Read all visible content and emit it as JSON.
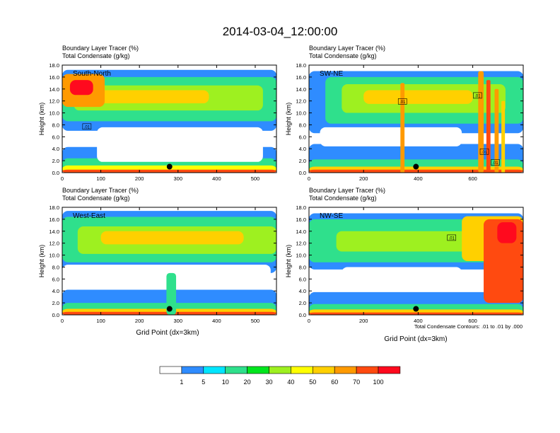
{
  "figure": {
    "title": "2014-03-04_12:00:00",
    "footnote": "Total Condensate Contours: .01 to .01 by .000"
  },
  "colors": {
    "levels": [
      "#ffffff",
      "#2f8cff",
      "#00e6ff",
      "#2fe08c",
      "#00e61e",
      "#9ef020",
      "#ffff00",
      "#ffd000",
      "#ff9a00",
      "#ff4a10",
      "#ff0a1e"
    ],
    "contour": "#000000"
  },
  "colorbar": {
    "labels": [
      "1",
      "5",
      "10",
      "20",
      "30",
      "40",
      "50",
      "60",
      "70",
      "100"
    ]
  },
  "chart_data": [
    {
      "type": "heatmap",
      "title": "Boundary Layer Tracer   (%)",
      "subtitle": "Total Condensate   (g/kg)",
      "panel_label": "South-North",
      "xlabel": "",
      "ylabel": "Height (km)",
      "xlim": [
        0,
        555
      ],
      "ylim": [
        0,
        18
      ],
      "xticks": [
        "0",
        "100",
        "200",
        "300",
        "400",
        "500"
      ],
      "yticks": [
        "0.0",
        "2.0",
        "4.0",
        "6.0",
        "8.0",
        "10.0",
        "12.0",
        "14.0",
        "16.0",
        "18.0"
      ],
      "contour_labels": [
        {
          "x": 62,
          "y": 7.6,
          "text": ".01"
        }
      ],
      "marker": {
        "x": 278,
        "y": 1.0
      },
      "layers": [
        {
          "level": 1,
          "x": [
            0,
            555
          ],
          "y": [
            0,
            4.3
          ]
        },
        {
          "level": 3,
          "x": [
            0,
            555
          ],
          "y": [
            0,
            2.4
          ]
        },
        {
          "level": 6,
          "x": [
            0,
            555
          ],
          "y": [
            0,
            1.2
          ]
        },
        {
          "level": 9,
          "x": [
            0,
            555
          ],
          "y": [
            0,
            0.5
          ]
        },
        {
          "level": 1,
          "x": [
            0,
            555
          ],
          "y": [
            7.0,
            17.2
          ]
        },
        {
          "level": 3,
          "x": [
            0,
            555
          ],
          "y": [
            8.6,
            16.0
          ]
        },
        {
          "level": 5,
          "x": [
            30,
            520
          ],
          "y": [
            10.4,
            14.6
          ]
        },
        {
          "level": 7,
          "x": [
            60,
            380
          ],
          "y": [
            11.6,
            13.8
          ]
        },
        {
          "level": 8,
          "x": [
            0,
            110
          ],
          "y": [
            11.0,
            16.5
          ]
        },
        {
          "level": 10,
          "x": [
            20,
            80
          ],
          "y": [
            13.0,
            15.5
          ]
        },
        {
          "level": 0,
          "x": [
            90,
            520
          ],
          "y": [
            1.8,
            7.6
          ]
        }
      ]
    },
    {
      "type": "heatmap",
      "title": "Boundary Layer Tracer   (%)",
      "subtitle": "Total Condensate   (g/kg)",
      "panel_label": "SW-NE",
      "xlabel": "",
      "ylabel": "Height (km)",
      "xlim": [
        0,
        785
      ],
      "ylim": [
        0,
        18
      ],
      "xticks": [
        "0",
        "200",
        "400",
        "600"
      ],
      "yticks": [
        "0.0",
        "2.0",
        "4.0",
        "6.0",
        "8.0",
        "10.0",
        "12.0",
        "14.0",
        "16.0",
        "18.0"
      ],
      "contour_labels": [
        {
          "x": 340,
          "y": 11.8,
          "text": ".01"
        },
        {
          "x": 615,
          "y": 12.8,
          "text": ".01"
        },
        {
          "x": 640,
          "y": 3.4,
          "text": ".01"
        },
        {
          "x": 680,
          "y": 1.6,
          "text": ".01"
        }
      ],
      "marker": {
        "x": 392,
        "y": 1.0
      },
      "layers": [
        {
          "level": 1,
          "x": [
            0,
            785
          ],
          "y": [
            0,
            4.8
          ]
        },
        {
          "level": 3,
          "x": [
            0,
            785
          ],
          "y": [
            0,
            2.2
          ]
        },
        {
          "level": 7,
          "x": [
            0,
            785
          ],
          "y": [
            0,
            1.0
          ]
        },
        {
          "level": 9,
          "x": [
            0,
            785
          ],
          "y": [
            0,
            0.5
          ]
        },
        {
          "level": 1,
          "x": [
            0,
            785
          ],
          "y": [
            6.6,
            17.0
          ]
        },
        {
          "level": 3,
          "x": [
            60,
            785
          ],
          "y": [
            8.2,
            16.0
          ]
        },
        {
          "level": 5,
          "x": [
            120,
            720
          ],
          "y": [
            10.0,
            14.8
          ]
        },
        {
          "level": 7,
          "x": [
            200,
            600
          ],
          "y": [
            11.5,
            13.8
          ]
        },
        {
          "level": 0,
          "x": [
            40,
            560
          ],
          "y": [
            4.4,
            7.6
          ]
        },
        {
          "level": 8,
          "x": [
            335,
            350
          ],
          "y": [
            0,
            15.0
          ]
        },
        {
          "level": 8,
          "x": [
            620,
            640
          ],
          "y": [
            0,
            17.0
          ]
        },
        {
          "level": 9,
          "x": [
            650,
            665
          ],
          "y": [
            0,
            15.5
          ]
        },
        {
          "level": 8,
          "x": [
            680,
            695
          ],
          "y": [
            0,
            14.0
          ]
        },
        {
          "level": 7,
          "x": [
            705,
            718
          ],
          "y": [
            0,
            12.0
          ]
        }
      ]
    },
    {
      "type": "heatmap",
      "title": "Boundary Layer Tracer   (%)",
      "subtitle": "Total Condensate   (g/kg)",
      "panel_label": "West-East",
      "xlabel": "Grid Point (dx=3km)",
      "ylabel": "Height (km)",
      "xlim": [
        0,
        555
      ],
      "ylim": [
        0,
        18
      ],
      "xticks": [
        "0",
        "100",
        "200",
        "300",
        "400",
        "500"
      ],
      "yticks": [
        "0.0",
        "2.0",
        "4.0",
        "6.0",
        "8.0",
        "10.0",
        "12.0",
        "14.0",
        "16.0",
        "18.0"
      ],
      "contour_labels": [],
      "marker": {
        "x": 278,
        "y": 1.0
      },
      "layers": [
        {
          "level": 1,
          "x": [
            0,
            555
          ],
          "y": [
            0,
            4.2
          ]
        },
        {
          "level": 3,
          "x": [
            0,
            555
          ],
          "y": [
            0,
            2.0
          ]
        },
        {
          "level": 7,
          "x": [
            0,
            555
          ],
          "y": [
            0,
            1.0
          ]
        },
        {
          "level": 9,
          "x": [
            0,
            555
          ],
          "y": [
            0,
            0.5
          ]
        },
        {
          "level": 1,
          "x": [
            0,
            555
          ],
          "y": [
            7.0,
            17.4
          ]
        },
        {
          "level": 3,
          "x": [
            0,
            555
          ],
          "y": [
            8.8,
            16.4
          ]
        },
        {
          "level": 5,
          "x": [
            40,
            555
          ],
          "y": [
            10.2,
            14.8
          ]
        },
        {
          "level": 7,
          "x": [
            100,
            470
          ],
          "y": [
            11.8,
            14.0
          ]
        },
        {
          "level": 0,
          "x": [
            0,
            540
          ],
          "y": [
            4.4,
            8.4
          ]
        },
        {
          "level": 3,
          "x": [
            270,
            295
          ],
          "y": [
            0,
            7.0
          ]
        }
      ]
    },
    {
      "type": "heatmap",
      "title": "Boundary Layer Tracer   (%)",
      "subtitle": "Total Condensate   (g/kg)",
      "panel_label": "NW-SE",
      "xlabel": "Grid Point (dx=3km)",
      "ylabel": "Height (km)",
      "xlim": [
        0,
        785
      ],
      "ylim": [
        0,
        18
      ],
      "xticks": [
        "0",
        "200",
        "400",
        "600"
      ],
      "yticks": [
        "0.0",
        "2.0",
        "4.0",
        "6.0",
        "8.0",
        "10.0",
        "12.0",
        "14.0",
        "16.0",
        "18.0"
      ],
      "contour_labels": [
        {
          "x": 520,
          "y": 12.8,
          "text": ".01"
        }
      ],
      "marker": {
        "x": 392,
        "y": 1.0
      },
      "layers": [
        {
          "level": 1,
          "x": [
            0,
            785
          ],
          "y": [
            0,
            3.8
          ]
        },
        {
          "level": 3,
          "x": [
            0,
            785
          ],
          "y": [
            0,
            1.8
          ]
        },
        {
          "level": 7,
          "x": [
            0,
            785
          ],
          "y": [
            0,
            0.9
          ]
        },
        {
          "level": 9,
          "x": [
            0,
            785
          ],
          "y": [
            0,
            0.4
          ]
        },
        {
          "level": 1,
          "x": [
            0,
            785
          ],
          "y": [
            7.6,
            17.0
          ]
        },
        {
          "level": 3,
          "x": [
            0,
            785
          ],
          "y": [
            8.8,
            16.0
          ]
        },
        {
          "level": 5,
          "x": [
            100,
            700
          ],
          "y": [
            10.6,
            14.0
          ]
        },
        {
          "level": 7,
          "x": [
            560,
            785
          ],
          "y": [
            9.0,
            16.5
          ]
        },
        {
          "level": 9,
          "x": [
            640,
            785
          ],
          "y": [
            2.0,
            16.0
          ]
        },
        {
          "level": 10,
          "x": [
            690,
            760
          ],
          "y": [
            12.0,
            15.5
          ]
        },
        {
          "level": 0,
          "x": [
            120,
            560
          ],
          "y": [
            4.0,
            8.0
          ]
        }
      ]
    }
  ]
}
